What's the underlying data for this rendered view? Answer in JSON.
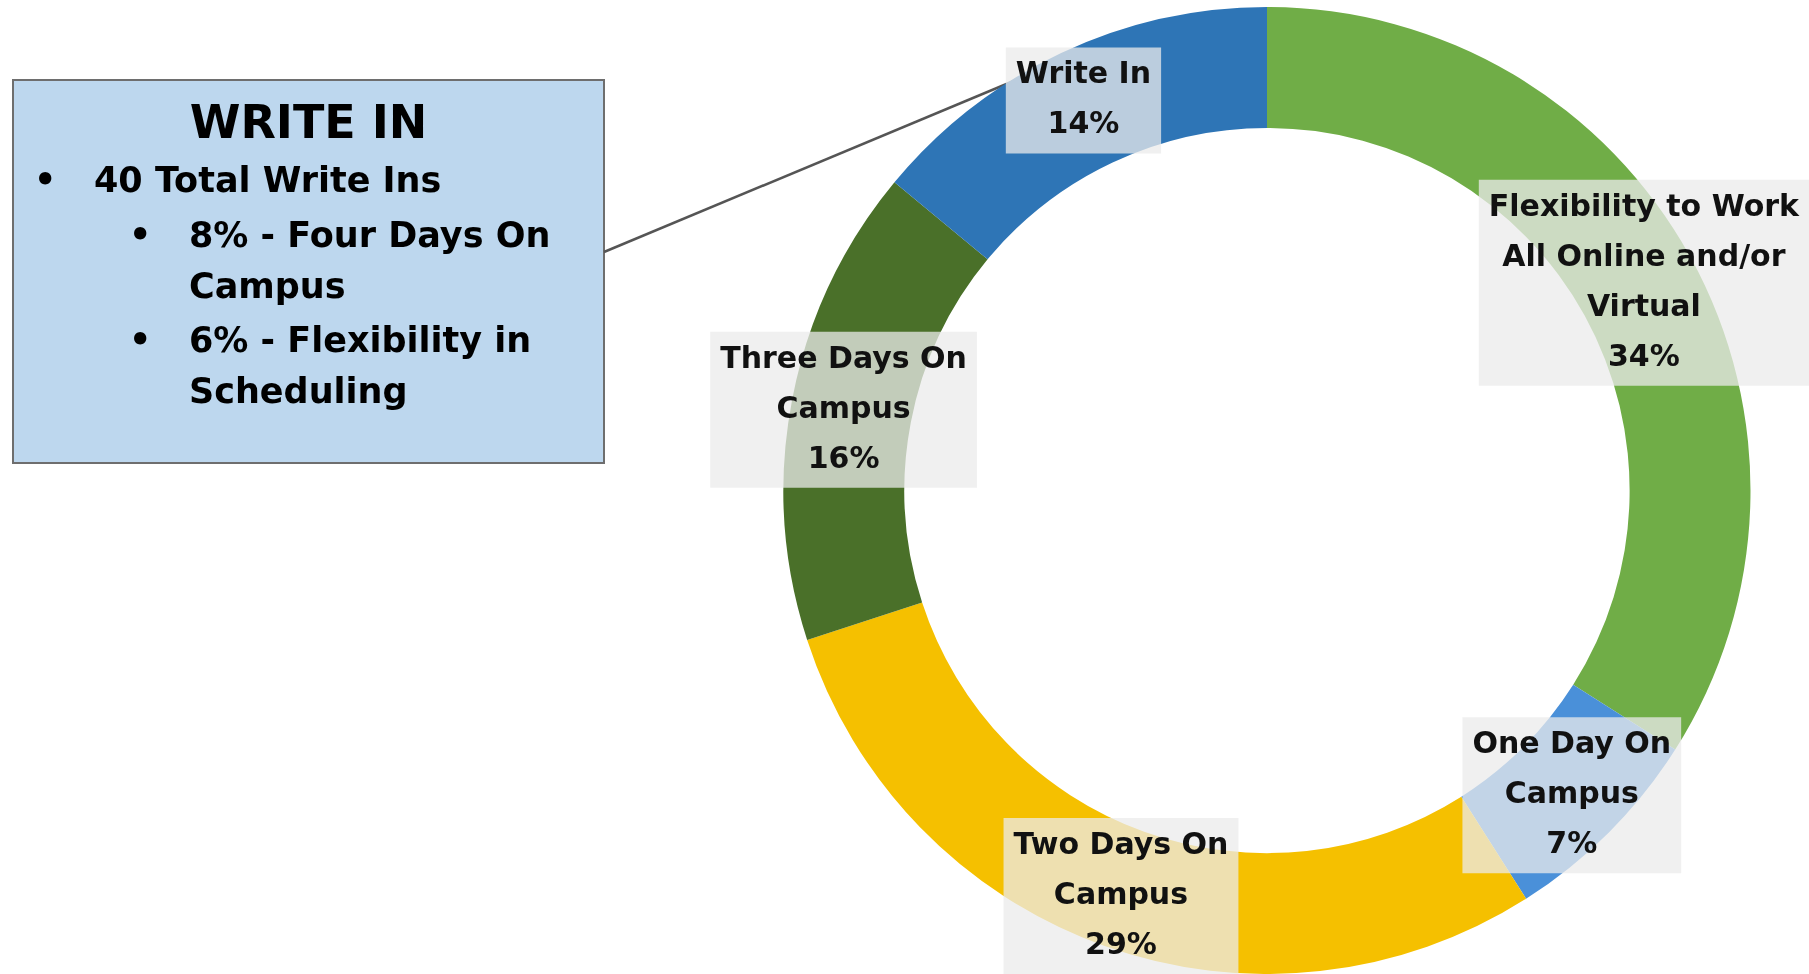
{
  "chart_data": {
    "type": "donut",
    "categories": [
      "Flexibility to Work All Online and/or Virtual",
      "One Day On Campus",
      "Two Days On Campus",
      "Three Days On Campus",
      "Write In"
    ],
    "values": [
      34,
      7,
      29,
      16,
      14
    ],
    "value_labels": [
      "34%",
      "7%",
      "29%",
      "16%",
      "14%"
    ],
    "colors": [
      "#70ad47",
      "#4a90d9",
      "#f5c000",
      "#4a7029",
      "#2e75b6"
    ],
    "legend": false,
    "annotations": [
      "WRITE IN",
      "• 40 Total Write Ins",
      "• 8% - Four Days On Campus",
      "• 6% - Flexibility in Scheduling"
    ]
  }
}
